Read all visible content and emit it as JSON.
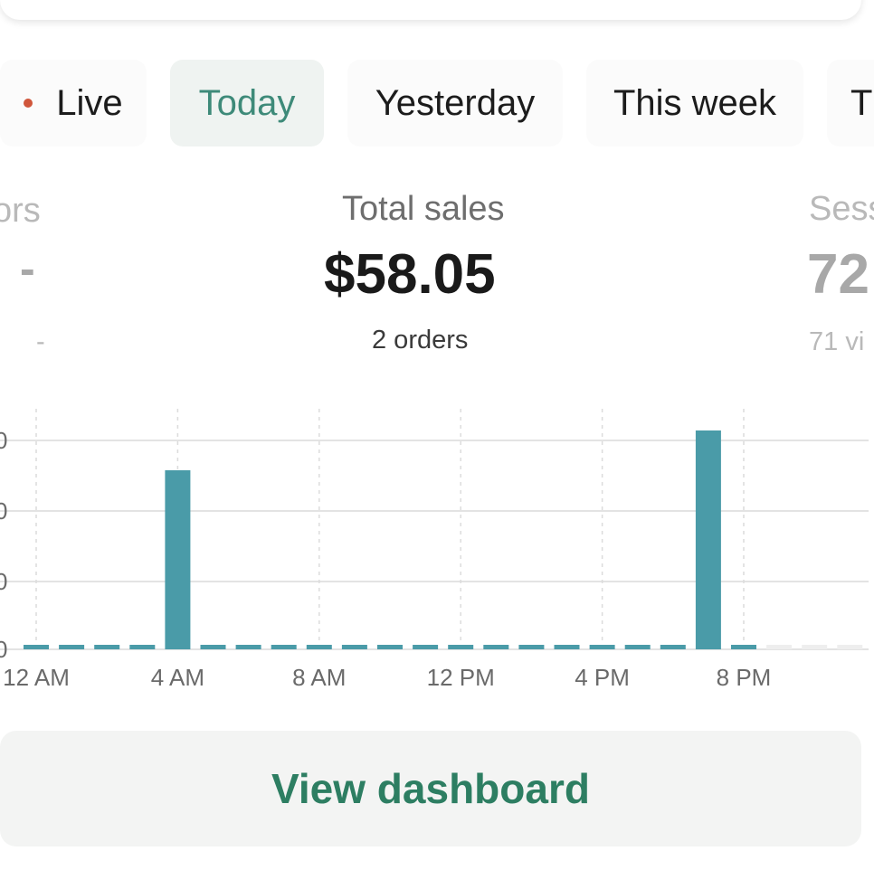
{
  "tabs": [
    {
      "label": "Live"
    },
    {
      "label": "Today"
    },
    {
      "label": "Yesterday"
    },
    {
      "label": "This week"
    },
    {
      "label": "T"
    }
  ],
  "metrics": {
    "left": {
      "label": "ors",
      "value": "-",
      "sub": "-"
    },
    "center": {
      "label": "Total sales",
      "value": "$58.05",
      "sub": "2 orders"
    },
    "right": {
      "label": "Sess",
      "value": "72",
      "sub": "71 vi"
    }
  },
  "chart_data": {
    "type": "bar",
    "x_tick_labels": [
      "12 AM",
      "4 AM",
      "8 AM",
      "12 PM",
      "4 PM",
      "8 PM"
    ],
    "y_tick_labels": [
      "0",
      "0",
      "0",
      "0"
    ],
    "bar_values_relative": [
      0,
      0,
      0,
      0,
      0.63,
      0,
      0,
      0,
      0,
      0,
      0,
      0,
      0,
      0,
      0,
      0,
      0,
      0,
      0,
      0.77,
      0
    ],
    "colors": {
      "bar": "#4a9ba8",
      "grid": "#e3e3e3"
    }
  },
  "cta": {
    "label": "View dashboard"
  }
}
